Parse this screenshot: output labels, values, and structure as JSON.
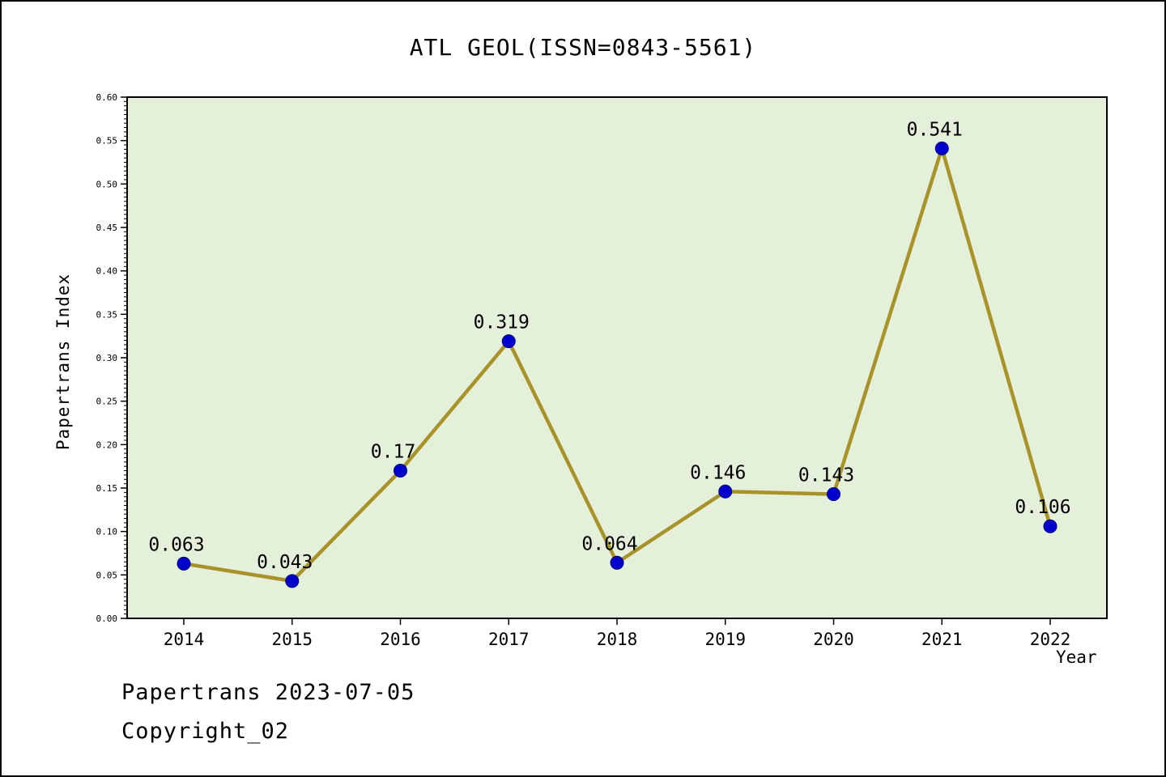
{
  "title": "ATL GEOL(ISSN=0843-5561)",
  "footer": {
    "line1": "Papertrans 2023-07-05",
    "line2": "Copyright_02"
  },
  "chart_data": {
    "type": "line",
    "title": "ATL GEOL(ISSN=0843-5561)",
    "xlabel": "Year",
    "ylabel": "Papertrans Index",
    "categories": [
      "2014",
      "2015",
      "2016",
      "2017",
      "2018",
      "2019",
      "2020",
      "2021",
      "2022"
    ],
    "values": [
      0.063,
      0.043,
      0.17,
      0.319,
      0.064,
      0.146,
      0.143,
      0.541,
      0.106
    ],
    "labels": [
      "0.063",
      "0.043",
      "0.17",
      "0.319",
      "0.064",
      "0.146",
      "0.143",
      "0.541",
      "0.106"
    ],
    "ylim": [
      0.0,
      0.6
    ],
    "ytick_step": 0.05,
    "y_minor_step": 0.005,
    "grid": false,
    "legend": "none",
    "colors": {
      "plot_background": "#e5f0da",
      "line": "#a8922a",
      "marker": "#0000cc",
      "marker_edge": "#00007a",
      "axis": "#000000",
      "text": "#000000"
    }
  }
}
